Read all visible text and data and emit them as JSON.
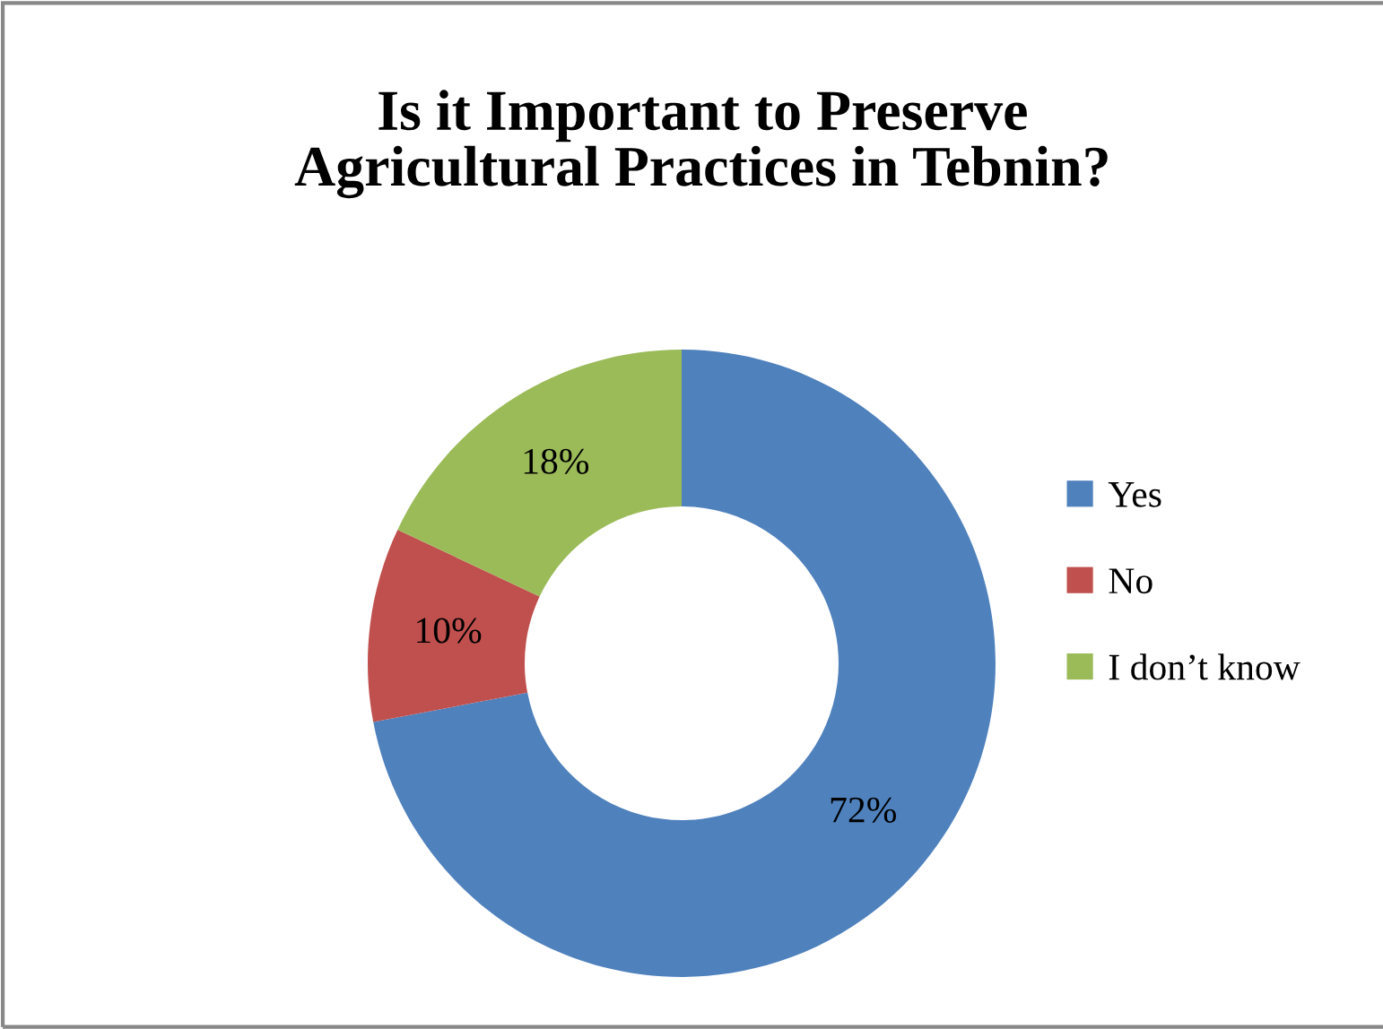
{
  "chart_data": {
    "type": "donut",
    "title": "Is it Important to Preserve\nAgricultural Practices in Tebnin?",
    "categories": [
      "Yes",
      "No",
      "I don’t know"
    ],
    "values": [
      72,
      10,
      18
    ],
    "colors": [
      "#4f81bd",
      "#c0504d",
      "#9bbb59"
    ],
    "value_labels": [
      "72%",
      "10%",
      "18%"
    ],
    "legend": "right"
  }
}
